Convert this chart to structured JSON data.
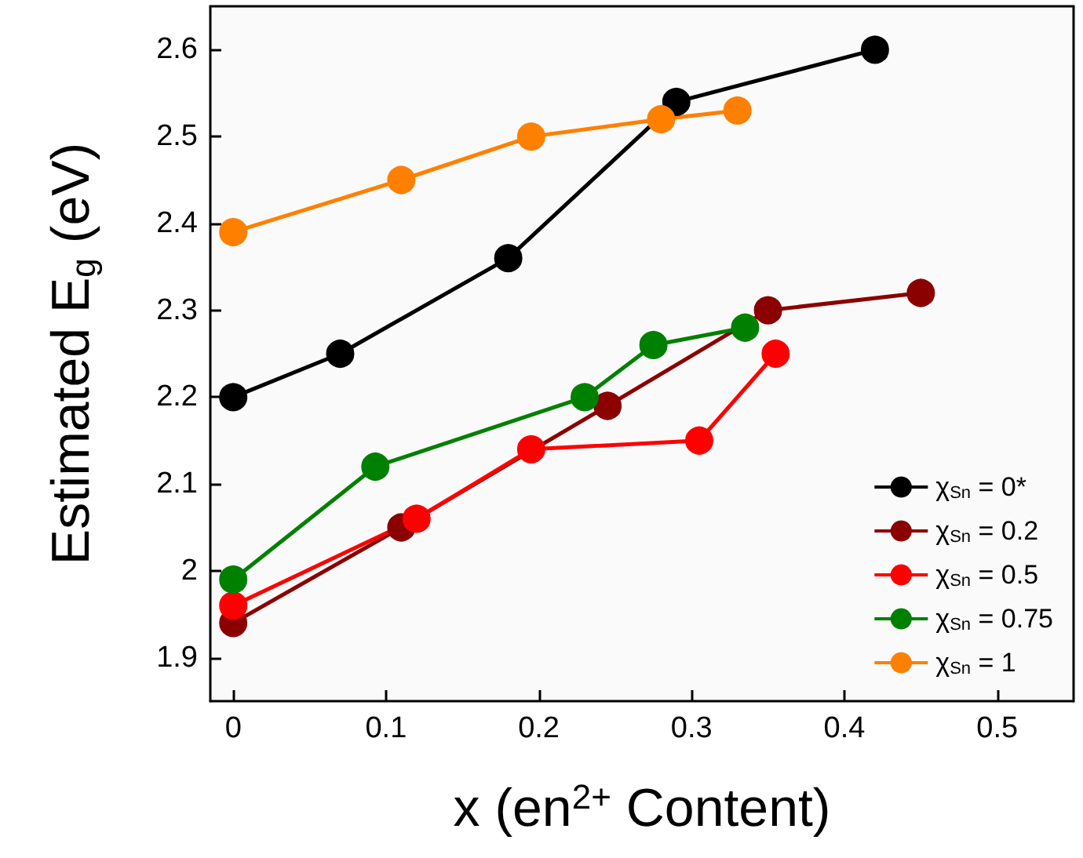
{
  "chart_data": {
    "type": "line",
    "xlabel": "x (en$^{2+}$ Content)",
    "ylabel": "Estimated E$_{g}$ (eV)",
    "xlim": [
      -0.015,
      0.55
    ],
    "xticks": [
      0,
      0.1,
      0.2,
      0.3,
      0.4,
      0.5
    ],
    "ylim": [
      1.85,
      2.65
    ],
    "yticks": [
      1.9,
      2.0,
      2.1,
      2.2,
      2.3,
      2.4,
      2.5,
      2.6
    ],
    "marker": "circle",
    "line_style": "solid",
    "grid": false,
    "legend": "bottom right",
    "series": [
      {
        "name": "χ$_{Sn}$ = 0*",
        "color": "#000000",
        "x": [
          0,
          0.07,
          0.18,
          0.29,
          0.42
        ],
        "values": [
          2.2,
          2.25,
          2.36,
          2.54,
          2.6
        ]
      },
      {
        "name": "χ$_{Sn}$ = 0.2",
        "color": "#8b0000",
        "x": [
          0,
          0.11,
          0.245,
          0.35,
          0.45
        ],
        "values": [
          1.94,
          2.05,
          2.19,
          2.3,
          2.32
        ]
      },
      {
        "name": "χ$_{Sn}$ = 0.5",
        "color": "#ff0000",
        "x": [
          0,
          0.12,
          0.195,
          0.305,
          0.355
        ],
        "values": [
          1.96,
          2.06,
          2.14,
          2.15,
          2.25
        ]
      },
      {
        "name": "χ$_{Sn}$ = 0.75",
        "color": "#008000",
        "x": [
          0,
          0.093,
          0.23,
          0.275,
          0.335
        ],
        "values": [
          1.99,
          2.12,
          2.2,
          2.26,
          2.28
        ]
      },
      {
        "name": "χ$_{Sn}$ = 1",
        "color": "#ff8000",
        "x": [
          0,
          0.11,
          0.195,
          0.28,
          0.33
        ],
        "values": [
          2.39,
          2.45,
          2.5,
          2.52,
          2.53
        ]
      }
    ]
  }
}
